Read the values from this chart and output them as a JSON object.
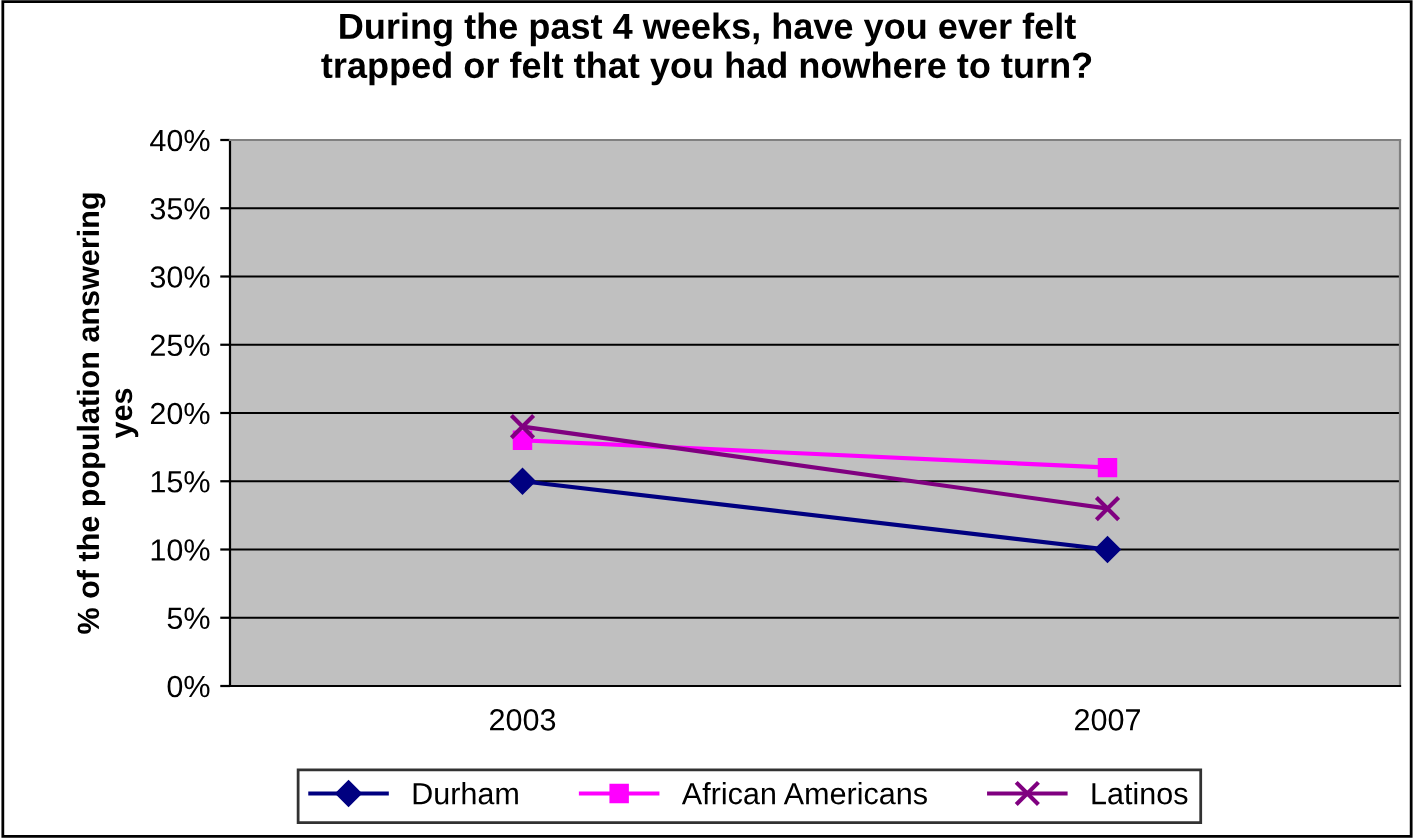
{
  "chart_data": {
    "type": "line",
    "title": "During the past 4 weeks, have you ever felt\ntrapped or felt that you had nowhere to turn?",
    "ylabel": "% of the population answering\nyes",
    "categories": [
      "2003",
      "2007"
    ],
    "series": [
      {
        "name": "Durham",
        "color": "#000080",
        "values": [
          15,
          10
        ],
        "marker": "diamond"
      },
      {
        "name": "African Americans",
        "color": "#ff00ff",
        "values": [
          18,
          16
        ],
        "marker": "square"
      },
      {
        "name": "Latinos",
        "color": "#800080",
        "values": [
          19,
          13
        ],
        "marker": "cross"
      }
    ],
    "ylim": [
      0,
      40
    ],
    "yticks": [
      {
        "value": 0,
        "label": "0%"
      },
      {
        "value": 5,
        "label": "5%"
      },
      {
        "value": 10,
        "label": "10%"
      },
      {
        "value": 15,
        "label": "15%"
      },
      {
        "value": 20,
        "label": "20%"
      },
      {
        "value": 25,
        "label": "25%"
      },
      {
        "value": 30,
        "label": "30%"
      },
      {
        "value": 35,
        "label": "35%"
      },
      {
        "value": 40,
        "label": "40%"
      }
    ],
    "grid": "y",
    "legend": "bottom",
    "line_style": "solid"
  }
}
